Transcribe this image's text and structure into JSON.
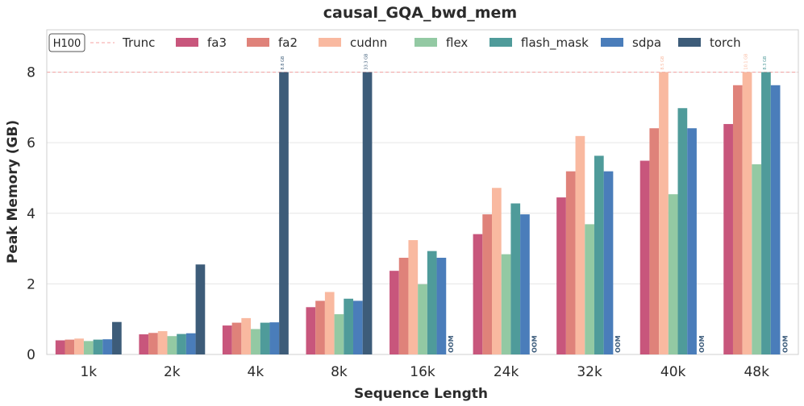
{
  "chart_data": {
    "type": "bar",
    "title": "causal_GQA_bwd_mem",
    "xlabel": "Sequence Length",
    "ylabel": "Peak Memory (GB)",
    "ylim": [
      0,
      9.2
    ],
    "yticks": [
      "0",
      "2",
      "4",
      "6",
      "8"
    ],
    "grid": true,
    "legend_position": "top",
    "badge": "H100",
    "truncation": {
      "value": 8,
      "label": "Trunc",
      "color": "#f4a0a0"
    },
    "categories": [
      "1k",
      "2k",
      "4k",
      "8k",
      "16k",
      "24k",
      "32k",
      "40k",
      "48k"
    ],
    "series": [
      {
        "name": "fa3",
        "color": "#c8567c",
        "values": [
          0.4,
          0.57,
          0.82,
          1.34,
          2.37,
          3.41,
          4.45,
          5.49,
          6.53
        ]
      },
      {
        "name": "fa2",
        "color": "#df827a",
        "values": [
          0.42,
          0.61,
          0.9,
          1.52,
          2.74,
          3.97,
          5.19,
          6.41,
          7.63
        ]
      },
      {
        "name": "cudnn",
        "color": "#f9b9a0",
        "values": [
          0.45,
          0.66,
          1.03,
          1.77,
          3.24,
          4.72,
          6.19,
          8.0,
          8.0
        ]
      },
      {
        "name": "flex",
        "color": "#93c9a3",
        "values": [
          0.38,
          0.52,
          0.72,
          1.14,
          1.99,
          2.84,
          3.69,
          4.54,
          5.39
        ]
      },
      {
        "name": "flash_mask",
        "color": "#4f9b9a",
        "values": [
          0.42,
          0.58,
          0.9,
          1.58,
          2.93,
          4.28,
          5.63,
          6.98,
          8.0
        ]
      },
      {
        "name": "sdpa",
        "color": "#4a7dba",
        "values": [
          0.43,
          0.6,
          0.91,
          1.52,
          2.74,
          3.97,
          5.19,
          6.41,
          7.63
        ]
      },
      {
        "name": "torch",
        "color": "#3d5c79",
        "values": [
          0.92,
          2.55,
          8.0,
          8.0,
          null,
          null,
          null,
          null,
          null
        ]
      }
    ],
    "truncated_labels": [
      {
        "series": "torch",
        "category": "4k",
        "label": "8.8 GB"
      },
      {
        "series": "torch",
        "category": "8k",
        "label": "33.3 GB"
      },
      {
        "series": "cudnn",
        "category": "40k",
        "label": "8.5 GB"
      },
      {
        "series": "cudnn",
        "category": "48k",
        "label": "10.1 GB"
      },
      {
        "series": "flash_mask",
        "category": "48k",
        "label": "8.3 GB"
      }
    ],
    "oom_label": "OOM",
    "oom": [
      {
        "series": "torch",
        "category": "16k"
      },
      {
        "series": "torch",
        "category": "24k"
      },
      {
        "series": "torch",
        "category": "32k"
      },
      {
        "series": "torch",
        "category": "40k"
      },
      {
        "series": "torch",
        "category": "48k"
      }
    ]
  }
}
